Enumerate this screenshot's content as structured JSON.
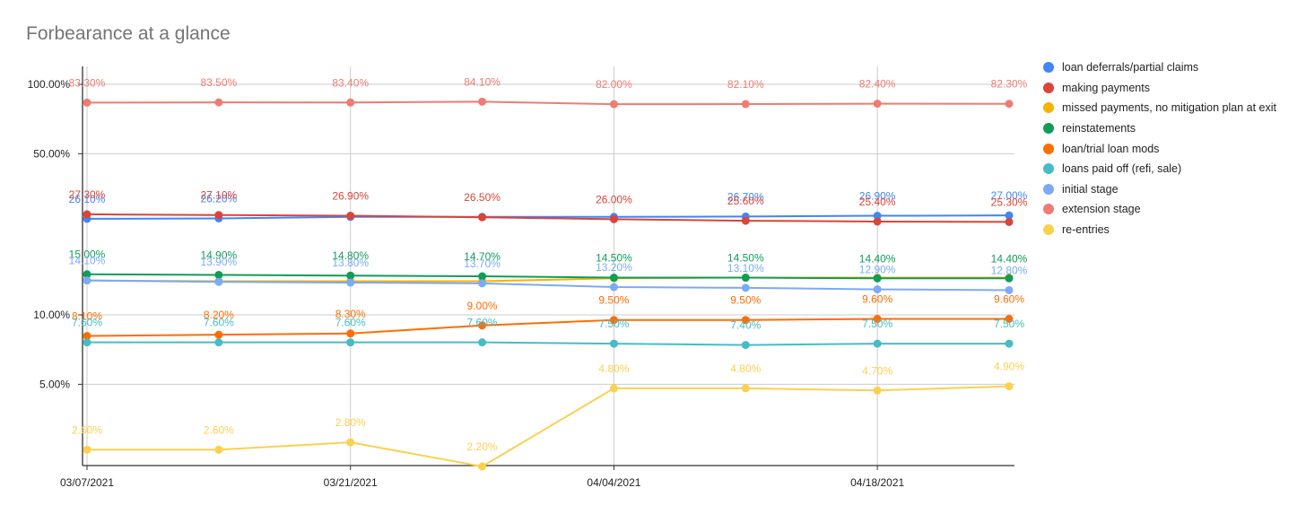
{
  "chart_data": {
    "type": "line",
    "title": "Forbearance at a glance",
    "xlabel": "",
    "ylabel": "",
    "y_scale": "log",
    "x": [
      "03/07/2021",
      "03/14/2021",
      "03/21/2021",
      "03/28/2021",
      "04/04/2021",
      "04/11/2021",
      "04/18/2021",
      "04/25/2021"
    ],
    "x_tick_labels": [
      "03/07/2021",
      "03/21/2021",
      "04/04/2021",
      "04/18/2021"
    ],
    "y_ticks": [
      5,
      10,
      50,
      100
    ],
    "y_tick_labels": [
      "5.00%",
      "10.00%",
      "50.00%",
      "100.00%"
    ],
    "grid": true,
    "legend_position": "right",
    "series": [
      {
        "name": "loan deferrals/partial claims",
        "color": "#4285f4",
        "values": [
          26.1,
          26.2,
          26.6,
          26.6,
          26.6,
          26.7,
          26.9,
          27.0
        ],
        "labels": [
          "26.10%",
          "26.20%",
          "",
          "",
          "",
          "26.70%",
          "26.90%",
          "27.00%"
        ]
      },
      {
        "name": "making payments",
        "color": "#db4437",
        "values": [
          27.3,
          27.1,
          26.9,
          26.5,
          26.0,
          25.6,
          25.4,
          25.3
        ],
        "labels": [
          "27.30%",
          "27.10%",
          "26.90%",
          "26.50%",
          "26.00%",
          "25.60%",
          "25.40%",
          "25.30%"
        ]
      },
      {
        "name": "missed payments, no mitigation plan at exit",
        "color": "#f4b400",
        "values": [
          14.1,
          14.0,
          14.0,
          14.0,
          14.4,
          14.5,
          14.5,
          14.5
        ],
        "labels": [
          "",
          "",
          "",
          "",
          "",
          "",
          "",
          ""
        ]
      },
      {
        "name": "reinstatements",
        "color": "#0f9d58",
        "values": [
          15.0,
          14.9,
          14.8,
          14.7,
          14.5,
          14.5,
          14.4,
          14.4
        ],
        "labels": [
          "15.00%",
          "14.90%",
          "14.80%",
          "14.70%",
          "14.50%",
          "14.50%",
          "14.40%",
          "14.40%"
        ]
      },
      {
        "name": "loan/trial loan mods",
        "color": "#ff6d01",
        "values": [
          8.1,
          8.2,
          8.3,
          9.0,
          9.5,
          9.5,
          9.6,
          9.6
        ],
        "labels": [
          "8.10%",
          "8.20%",
          "8.30%",
          "9.00%",
          "9.50%",
          "9.50%",
          "9.60%",
          "9.60%"
        ]
      },
      {
        "name": "loans paid off (refi, sale)",
        "color": "#46bdc6",
        "values": [
          7.6,
          7.6,
          7.6,
          7.6,
          7.5,
          7.4,
          7.5,
          7.5
        ],
        "labels": [
          "7.60%",
          "7.60%",
          "7.60%",
          "7.60%",
          "7.50%",
          "7.40%",
          "7.50%",
          "7.50%"
        ]
      },
      {
        "name": "initial stage",
        "color": "#7baaf7",
        "values": [
          14.1,
          13.9,
          13.8,
          13.7,
          13.2,
          13.1,
          12.9,
          12.8
        ],
        "labels": [
          "14.10%",
          "13.90%",
          "13.80%",
          "13.70%",
          "13.20%",
          "13.10%",
          "12.90%",
          "12.80%"
        ]
      },
      {
        "name": "extension stage",
        "color": "#f07b72",
        "values": [
          83.3,
          83.5,
          83.4,
          84.1,
          82.0,
          82.1,
          82.4,
          82.3
        ],
        "labels": [
          "83.30%",
          "83.50%",
          "83.40%",
          "84.10%",
          "82.00%",
          "82.10%",
          "82.40%",
          "82.30%"
        ]
      },
      {
        "name": "re-entries",
        "color": "#fcd04f",
        "values": [
          2.6,
          2.6,
          2.8,
          2.2,
          4.8,
          4.8,
          4.7,
          4.9
        ],
        "labels": [
          "2.60%",
          "2.60%",
          "2.80%",
          "2.20%",
          "4.80%",
          "4.80%",
          "4.70%",
          "4.90%"
        ]
      }
    ]
  }
}
